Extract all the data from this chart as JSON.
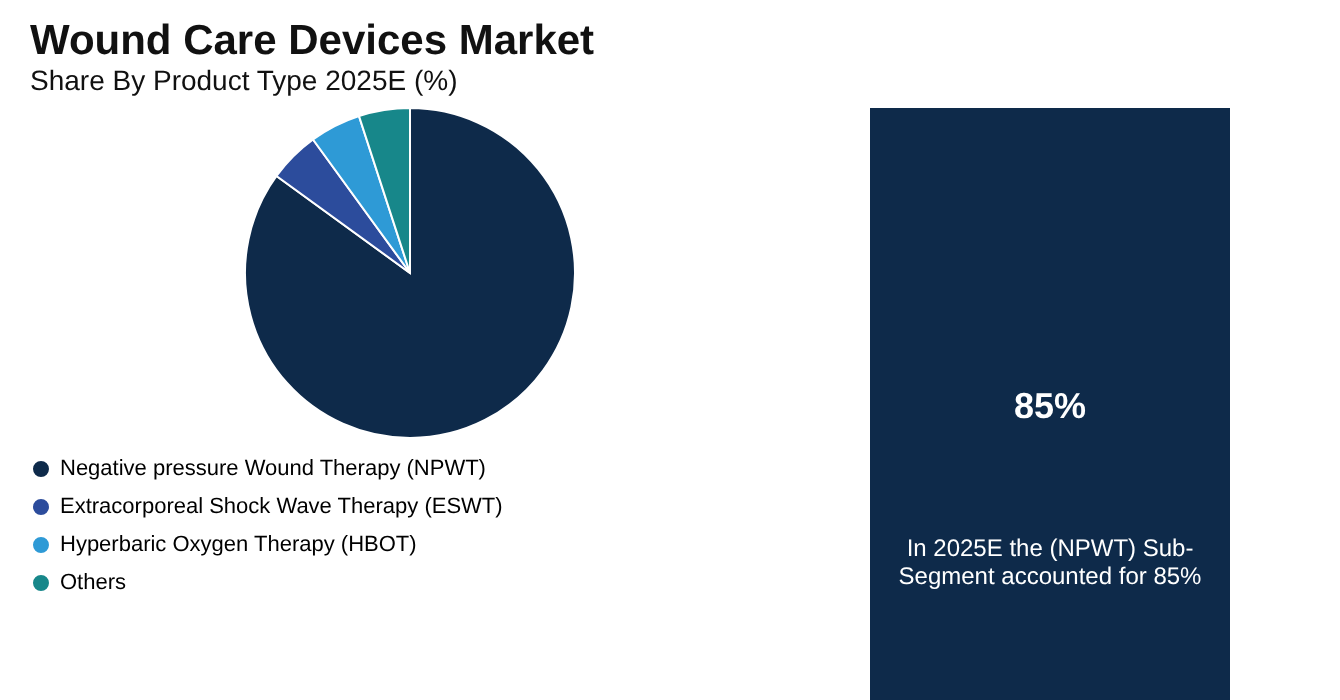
{
  "chart_data": {
    "type": "pie",
    "title": "Wound Care Devices Market",
    "subtitle": "Share By Product Type 2025E (%)",
    "categories": [
      "Negative pressure Wound Therapy (NPWT)",
      "Extracorporeal Shock Wave Therapy (ESWT)",
      "Hyperbaric Oxygen Therapy (HBOT)",
      "Others"
    ],
    "values": [
      85,
      5,
      5,
      5
    ],
    "colors": [
      "#0e2a4a",
      "#2c4c9c",
      "#2e9ad6",
      "#17878a"
    ],
    "legend": "bottom left",
    "annotations": [
      "85%",
      "In 2025E the (NPWT) Sub-Segment accounted for 85%"
    ]
  }
}
